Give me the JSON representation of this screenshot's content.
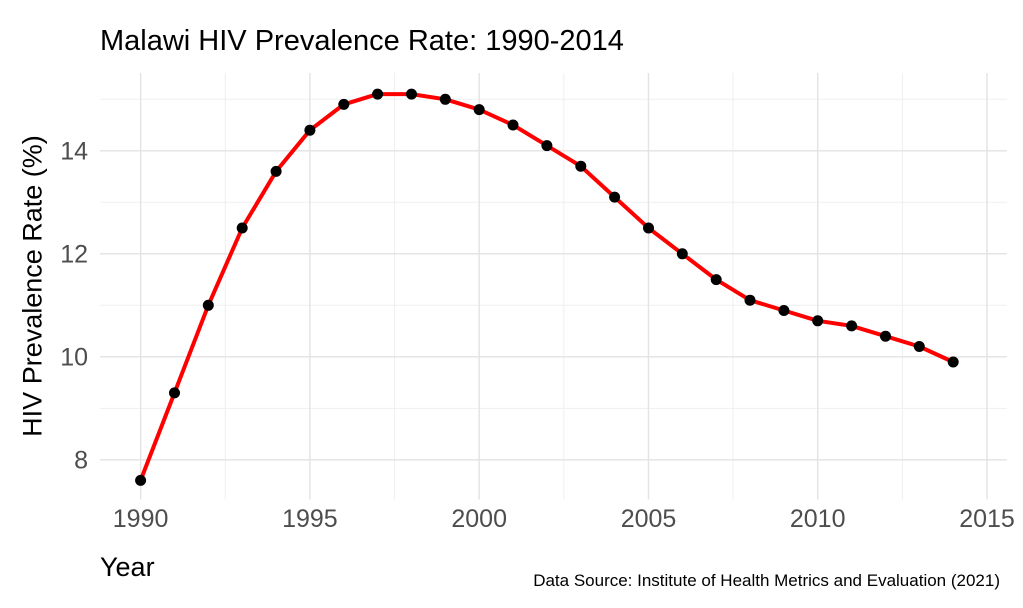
{
  "chart_data": {
    "type": "line",
    "title": "Malawi HIV Prevalence Rate: 1990-2014",
    "xlabel": "Year",
    "ylabel": "HIV Prevalence Rate (%)",
    "caption": "Data Source: Institute of Health Metrics and Evaluation (2021)",
    "x": [
      1990,
      1991,
      1992,
      1993,
      1994,
      1995,
      1996,
      1997,
      1998,
      1999,
      2000,
      2001,
      2002,
      2003,
      2004,
      2005,
      2006,
      2007,
      2008,
      2009,
      2010,
      2011,
      2012,
      2013,
      2014
    ],
    "y": [
      7.6,
      9.3,
      11.0,
      12.5,
      13.6,
      14.4,
      14.9,
      15.1,
      15.1,
      15.0,
      14.8,
      14.5,
      14.1,
      13.7,
      13.1,
      12.5,
      12.0,
      11.5,
      11.1,
      10.9,
      10.7,
      10.6,
      10.4,
      10.2,
      9.9
    ],
    "x_ticks": [
      1990,
      1995,
      2000,
      2005,
      2010,
      2015
    ],
    "x_tick_labels": [
      "1990",
      "1995",
      "2000",
      "2005",
      "2010",
      "2015"
    ],
    "x_minor_ticks": [
      1992.5,
      1997.5,
      2002.5,
      2007.5,
      2012.5
    ],
    "y_ticks": [
      8,
      10,
      12,
      14
    ],
    "y_tick_labels": [
      "8",
      "10",
      "12",
      "14"
    ],
    "y_minor_ticks": [
      9,
      11,
      13,
      15
    ],
    "xlim": [
      1988.8,
      2015.59
    ],
    "ylim": [
      7.23,
      15.51
    ],
    "grid": true,
    "legend": "none",
    "colors": {
      "line": "#FF0000",
      "point": "#000000",
      "grid_major": "#E3E3E3",
      "grid_minor": "#EFEFEF",
      "tick_text": "#4D4D4D",
      "title_text": "#000000",
      "background": "#FFFFFF"
    }
  }
}
